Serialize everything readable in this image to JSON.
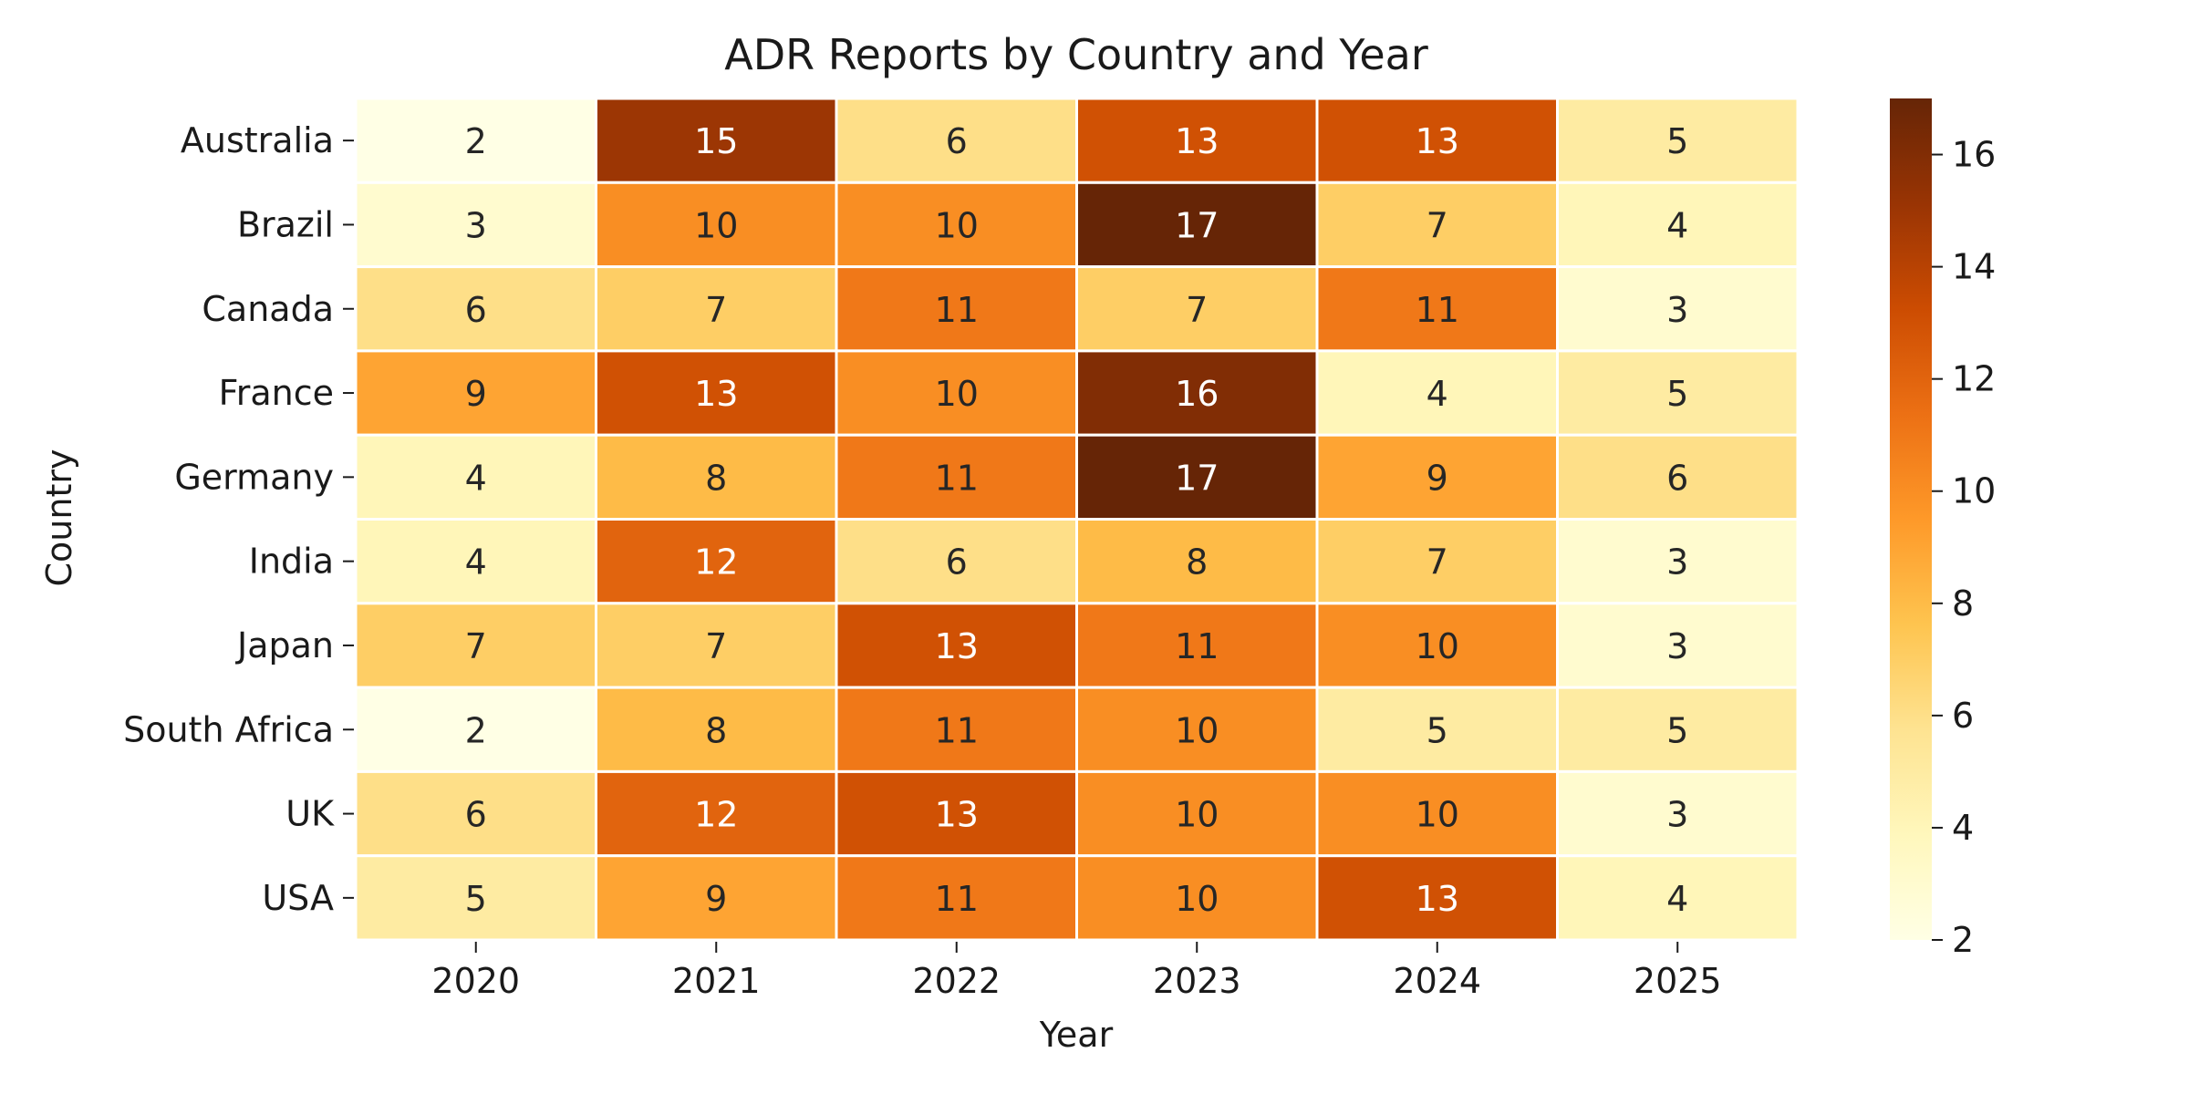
{
  "chart_data": {
    "type": "heatmap",
    "title": "ADR Reports by Country and Year",
    "xlabel": "Year",
    "ylabel": "Country",
    "x": [
      "2020",
      "2021",
      "2022",
      "2023",
      "2024",
      "2025"
    ],
    "y": [
      "Australia",
      "Brazil",
      "Canada",
      "France",
      "Germany",
      "India",
      "Japan",
      "South Africa",
      "UK",
      "USA"
    ],
    "values": [
      [
        2,
        15,
        6,
        13,
        13,
        5
      ],
      [
        3,
        10,
        10,
        17,
        7,
        4
      ],
      [
        6,
        7,
        11,
        7,
        11,
        3
      ],
      [
        9,
        13,
        10,
        16,
        4,
        5
      ],
      [
        4,
        8,
        11,
        17,
        9,
        6
      ],
      [
        4,
        12,
        6,
        8,
        7,
        3
      ],
      [
        7,
        7,
        13,
        11,
        10,
        3
      ],
      [
        2,
        8,
        11,
        10,
        5,
        5
      ],
      [
        6,
        12,
        13,
        10,
        10,
        3
      ],
      [
        5,
        9,
        11,
        10,
        13,
        4
      ]
    ],
    "colorbar": {
      "range": [
        2,
        17
      ],
      "ticks": [
        2,
        4,
        6,
        8,
        10,
        12,
        14,
        16
      ],
      "colormap": "YlOrBr"
    },
    "grid": false,
    "legend": "colorbar at right"
  }
}
